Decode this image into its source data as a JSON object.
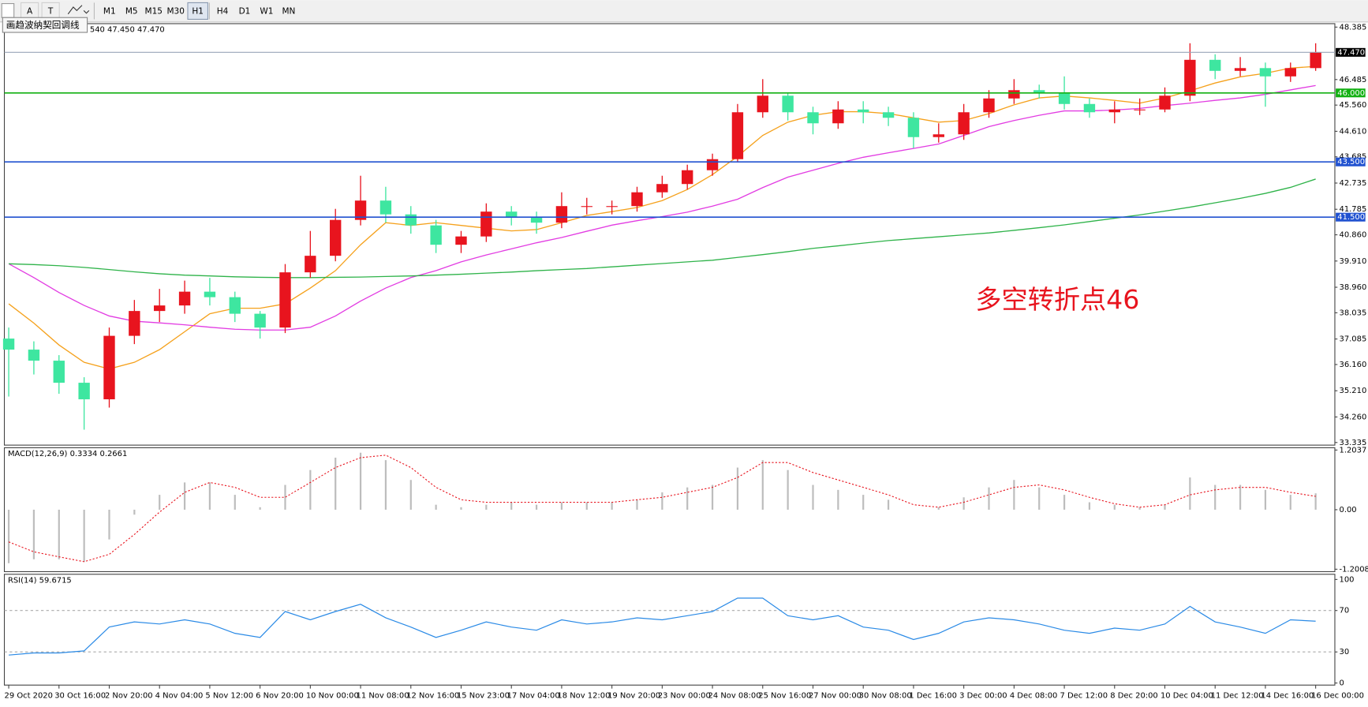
{
  "toolbar": {
    "tools": [
      "A",
      "T"
    ],
    "timeframes": [
      "M1",
      "M5",
      "M15",
      "M30",
      "H1",
      "H4",
      "D1",
      "W1",
      "MN"
    ],
    "active": "H1",
    "tooltip": "画趋波纳契回调线"
  },
  "chart_data": [
    {
      "type": "candlestick",
      "header": "540 47.450 47.470",
      "annotation": "多空转折点46",
      "categories": [
        "29 Oct 2020",
        null,
        "30 Oct 16:00",
        null,
        "2 Nov 20:00",
        null,
        "4 Nov 04:00",
        null,
        "5 Nov 12:00",
        null,
        "6 Nov 20:00",
        null,
        "10 Nov 00:00",
        null,
        "11 Nov 08:00",
        null,
        "12 Nov 16:00",
        null,
        "15 Nov 23:00",
        null,
        "17 Nov 04:00",
        null,
        "18 Nov 12:00",
        null,
        "19 Nov 20:00",
        null,
        "23 Nov 00:00",
        null,
        "24 Nov 08:00",
        null,
        "25 Nov 16:00",
        null,
        "27 Nov 00:00",
        null,
        "30 Nov 08:00",
        null,
        "1 Dec 16:00",
        null,
        "3 Dec 00:00",
        null,
        "4 Dec 08:00",
        null,
        "7 Dec 12:00",
        null,
        "8 Dec 20:00",
        null,
        "10 Dec 04:00",
        null,
        "11 Dec 12:00",
        null,
        "14 Dec 16:00",
        null,
        "16 Dec 00:00"
      ],
      "open": [
        37.1,
        36.7,
        36.3,
        35.5,
        34.9,
        37.2,
        38.1,
        38.3,
        38.8,
        38.6,
        38.0,
        37.5,
        39.5,
        40.1,
        41.4,
        42.1,
        41.6,
        41.2,
        40.5,
        40.8,
        41.7,
        41.5,
        41.3,
        41.9,
        41.9,
        41.9,
        42.4,
        42.7,
        43.2,
        43.6,
        45.3,
        45.9,
        45.3,
        44.9,
        45.4,
        45.3,
        45.1,
        44.4,
        44.5,
        45.3,
        45.8,
        46.1,
        46.0,
        45.6,
        45.3,
        45.4,
        45.4,
        45.9,
        47.2,
        46.8,
        46.9,
        46.6,
        46.9
      ],
      "high": [
        37.5,
        37.0,
        36.5,
        35.7,
        37.5,
        38.5,
        38.9,
        39.2,
        39.3,
        38.8,
        38.1,
        39.8,
        41.0,
        41.8,
        43.0,
        42.6,
        41.9,
        41.4,
        41.0,
        42.0,
        41.9,
        41.7,
        42.4,
        42.2,
        42.1,
        42.6,
        43.0,
        43.4,
        43.8,
        45.6,
        46.5,
        46.0,
        45.5,
        45.7,
        45.7,
        45.5,
        45.3,
        44.9,
        45.6,
        46.1,
        46.5,
        46.3,
        46.6,
        45.8,
        45.7,
        45.8,
        46.2,
        47.8,
        47.4,
        47.3,
        47.1,
        47.1,
        47.8
      ],
      "low": [
        35.0,
        35.8,
        35.1,
        33.8,
        34.6,
        36.9,
        37.7,
        38.0,
        38.3,
        37.7,
        37.1,
        37.3,
        39.3,
        39.9,
        41.2,
        41.3,
        40.9,
        40.2,
        40.2,
        40.6,
        41.2,
        40.9,
        41.1,
        41.6,
        41.6,
        41.7,
        42.2,
        42.5,
        43.0,
        43.5,
        45.1,
        45.0,
        44.5,
        44.7,
        44.9,
        44.8,
        44.0,
        44.2,
        44.3,
        45.1,
        45.6,
        45.8,
        45.4,
        45.1,
        44.9,
        45.2,
        45.3,
        45.7,
        46.5,
        46.6,
        45.5,
        46.4,
        46.8
      ],
      "close": [
        36.7,
        36.3,
        35.5,
        34.9,
        37.2,
        38.1,
        38.3,
        38.8,
        38.6,
        38.0,
        37.5,
        39.5,
        40.1,
        41.4,
        42.1,
        41.6,
        41.2,
        40.5,
        40.8,
        41.7,
        41.5,
        41.3,
        41.9,
        41.9,
        41.9,
        42.4,
        42.7,
        43.2,
        43.6,
        45.3,
        45.9,
        45.3,
        44.9,
        45.4,
        45.3,
        45.1,
        44.4,
        44.5,
        45.3,
        45.8,
        46.1,
        46.0,
        45.6,
        45.3,
        45.4,
        45.4,
        45.9,
        47.2,
        46.8,
        46.9,
        46.6,
        46.9,
        47.47
      ],
      "up_color": "#e8141e",
      "down_color": "#3ee6a0",
      "series": [
        {
          "color": "#f5a11c",
          "values": [
            38.36,
            37.66,
            36.87,
            36.24,
            36.0,
            36.24,
            36.7,
            37.35,
            38.0,
            38.2,
            38.2,
            38.36,
            38.93,
            39.56,
            40.5,
            41.3,
            41.2,
            41.3,
            41.2,
            41.1,
            41.0,
            41.05,
            41.3,
            41.56,
            41.7,
            41.85,
            42.1,
            42.5,
            43.04,
            43.7,
            44.46,
            44.94,
            45.19,
            45.32,
            45.32,
            45.25,
            45.1,
            44.94,
            45.0,
            45.25,
            45.57,
            45.82,
            45.89,
            45.82,
            45.73,
            45.63,
            45.82,
            46.08,
            46.36,
            46.58,
            46.71,
            46.9,
            46.96
          ]
        },
        {
          "color": "#e23ce2",
          "values": [
            39.81,
            39.31,
            38.77,
            38.3,
            37.92,
            37.73,
            37.67,
            37.6,
            37.51,
            37.44,
            37.41,
            37.41,
            37.51,
            37.92,
            38.46,
            38.93,
            39.31,
            39.56,
            39.88,
            40.13,
            40.35,
            40.57,
            40.76,
            40.99,
            41.21,
            41.37,
            41.52,
            41.68,
            41.9,
            42.15,
            42.57,
            42.95,
            43.2,
            43.45,
            43.67,
            43.83,
            43.99,
            44.15,
            44.46,
            44.78,
            45.0,
            45.19,
            45.35,
            45.35,
            45.38,
            45.44,
            45.54,
            45.63,
            45.73,
            45.82,
            45.95,
            46.11,
            46.27
          ]
        },
        {
          "color": "#2fb34a",
          "values": [
            39.81,
            39.78,
            39.74,
            39.68,
            39.6,
            39.52,
            39.45,
            39.4,
            39.37,
            39.34,
            39.32,
            39.31,
            39.31,
            39.32,
            39.33,
            39.35,
            39.37,
            39.4,
            39.43,
            39.47,
            39.51,
            39.56,
            39.6,
            39.64,
            39.7,
            39.76,
            39.82,
            39.88,
            39.94,
            40.04,
            40.14,
            40.25,
            40.37,
            40.46,
            40.56,
            40.65,
            40.72,
            40.79,
            40.86,
            40.93,
            41.02,
            41.12,
            41.22,
            41.34,
            41.46,
            41.58,
            41.72,
            41.86,
            42.02,
            42.18,
            42.36,
            42.58,
            42.88
          ]
        }
      ],
      "hlines": [
        {
          "value": 46,
          "label": "46.000",
          "color": "#12b012"
        },
        {
          "value": 43.5,
          "label": "43.500",
          "color": "#2152d0"
        },
        {
          "value": 41.5,
          "label": "41.500",
          "color": "#2152d0"
        }
      ],
      "current_price": {
        "value": 47.47,
        "label": "47.470",
        "color": "#9aa6b8"
      },
      "ylim": [
        33.24,
        48.51
      ],
      "yticks": [
        48.385,
        46.485,
        {
          "value": 45.56,
          "label": "45.560"
        },
        {
          "value": 44.61,
          "label": "44.610"
        },
        43.685,
        42.735,
        41.785,
        {
          "value": 40.86,
          "label": "40.860"
        },
        {
          "value": 39.91,
          "label": "39.910"
        },
        {
          "value": 38.96,
          "label": "38.960"
        },
        38.035,
        37.085,
        {
          "value": 36.16,
          "label": "36.160"
        },
        {
          "value": 35.21,
          "label": "35.210"
        },
        {
          "value": 34.26,
          "label": "34.260"
        },
        33.335
      ]
    },
    {
      "type": "macd",
      "title": "MACD(12,26,9) 0.3334 0.2661",
      "histogram": {
        "color": "#bdbdbd",
        "values": [
          -1.08,
          -1.0,
          -1.0,
          -1.05,
          -0.6,
          -0.1,
          0.3,
          0.55,
          0.55,
          0.3,
          0.05,
          0.5,
          0.8,
          1.05,
          1.15,
          1.0,
          0.6,
          0.1,
          0.05,
          0.1,
          0.15,
          0.1,
          0.15,
          0.15,
          0.15,
          0.2,
          0.35,
          0.45,
          0.5,
          0.85,
          1.0,
          0.8,
          0.5,
          0.4,
          0.3,
          0.2,
          0.0,
          0.05,
          0.25,
          0.45,
          0.6,
          0.45,
          0.3,
          0.15,
          0.1,
          0.05,
          0.1,
          0.65,
          0.5,
          0.5,
          0.4,
          0.3,
          0.33
        ]
      },
      "signal": {
        "color": "#e8141e",
        "values": [
          -0.65,
          -0.85,
          -0.95,
          -1.05,
          -0.9,
          -0.5,
          -0.05,
          0.35,
          0.55,
          0.45,
          0.25,
          0.25,
          0.55,
          0.85,
          1.05,
          1.1,
          0.85,
          0.45,
          0.2,
          0.15,
          0.15,
          0.15,
          0.15,
          0.15,
          0.15,
          0.2,
          0.25,
          0.35,
          0.45,
          0.65,
          0.95,
          0.95,
          0.75,
          0.6,
          0.45,
          0.3,
          0.1,
          0.05,
          0.15,
          0.3,
          0.45,
          0.5,
          0.4,
          0.25,
          0.12,
          0.05,
          0.1,
          0.3,
          0.4,
          0.45,
          0.45,
          0.35,
          0.27
        ]
      },
      "ylim": [
        -1.25,
        1.25
      ],
      "yticks": [
        1.2037,
        {
          "value": 0,
          "label": "0.00"
        },
        -1.2008
      ]
    },
    {
      "type": "rsi",
      "title": "RSI(14) 59.6715",
      "color": "#2a8ae6",
      "values": [
        27,
        29,
        29,
        31,
        54,
        59,
        57,
        61,
        57,
        48,
        44,
        69,
        61,
        69,
        76,
        63,
        54,
        44,
        51,
        59,
        54,
        51,
        61,
        57,
        59,
        63,
        61,
        65,
        69,
        82,
        82,
        65,
        61,
        65,
        54,
        51,
        42,
        48,
        59,
        63,
        61,
        57,
        51,
        48,
        53,
        51,
        57,
        74,
        59,
        54,
        48,
        61,
        59.67
      ],
      "ylim": [
        -2,
        105
      ],
      "yticks": [
        100,
        70,
        30,
        0
      ],
      "level_lines": "dashed"
    }
  ]
}
